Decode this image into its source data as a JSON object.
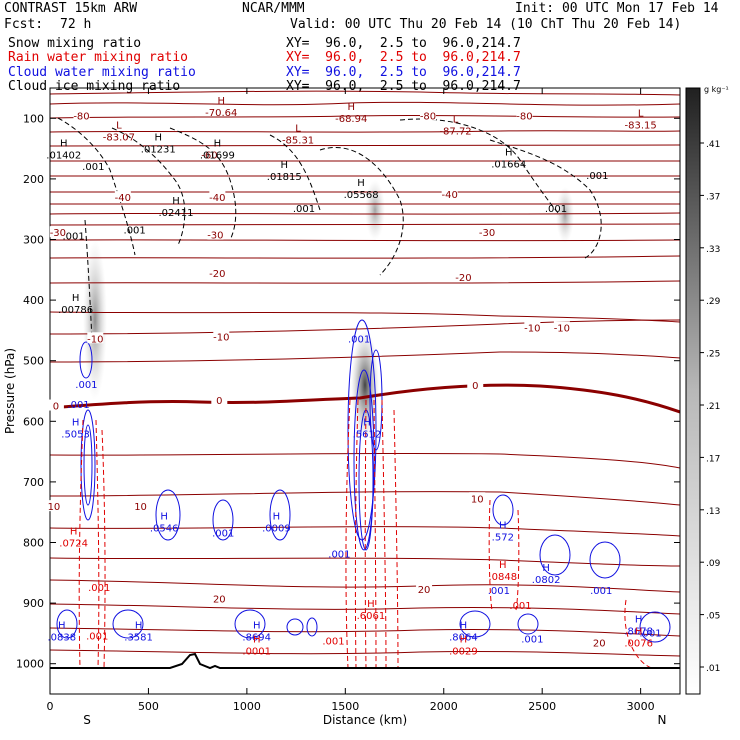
{
  "header": {
    "title": "CONTRAST 15km ARW",
    "org": "NCAR/MMM",
    "init": "Init: 00 UTC Mon 17 Feb 14",
    "fcst_label": "Fcst:",
    "fcst_value": "72 h",
    "valid": "Valid: 00 UTC Thu 20 Feb 14 (10 ChT Thu 20 Feb 14)",
    "fields": [
      {
        "name": "Snow mixing ratio",
        "color": "#000000"
      },
      {
        "name": "Rain water mixing ratio",
        "color": "#e00000"
      },
      {
        "name": "Cloud water mixing ratio",
        "color": "#1010e0"
      },
      {
        "name": "Cloud ice mixing ratio",
        "color": "#000000"
      }
    ],
    "xy_text": "XY=  96.0,  2.5 to  96.0,214.7"
  },
  "colorbar": {
    "unit": "g kg⁻¹",
    "ticks": [
      ".41",
      ".37",
      ".33",
      ".29",
      ".25",
      ".21",
      ".17",
      ".13",
      ".09",
      ".05",
      ".01"
    ]
  },
  "chart_data": {
    "type": "contour",
    "title": "CONTRAST 15km ARW cross section",
    "xlabel": "Distance (km)",
    "ylabel": "Pressure (hPa)",
    "xlim": [
      0,
      3200
    ],
    "ylim": [
      1050,
      50
    ],
    "x_ticks": [
      "0",
      "500",
      "1000",
      "1500",
      "2000",
      "2500",
      "3000"
    ],
    "y_ticks": [
      "100",
      "200",
      "300",
      "400",
      "500",
      "600",
      "700",
      "800",
      "900",
      "1000"
    ],
    "end_labels": [
      "S",
      "N"
    ],
    "temperature_labels": [
      {
        "t": "-80",
        "x": 160,
        "p": 95
      },
      {
        "t": "-80",
        "x": 1920,
        "p": 95
      },
      {
        "t": "-80",
        "x": 2410,
        "p": 95
      },
      {
        "t": "-60",
        "x": 810,
        "p": 160
      },
      {
        "t": "-40",
        "x": 370,
        "p": 230
      },
      {
        "t": "-40",
        "x": 850,
        "p": 230
      },
      {
        "t": "-40",
        "x": 2030,
        "p": 225
      },
      {
        "t": "-30",
        "x": 40,
        "p": 288
      },
      {
        "t": "-30",
        "x": 840,
        "p": 292
      },
      {
        "t": "-30",
        "x": 2220,
        "p": 288
      },
      {
        "t": "-20",
        "x": 850,
        "p": 355
      },
      {
        "t": "-20",
        "x": 2100,
        "p": 362
      },
      {
        "t": "-10",
        "x": 230,
        "p": 463
      },
      {
        "t": "-10",
        "x": 870,
        "p": 460
      },
      {
        "t": "-10",
        "x": 2450,
        "p": 445
      },
      {
        "t": "-10",
        "x": 2600,
        "p": 445
      },
      {
        "t": "0",
        "x": 30,
        "p": 574
      },
      {
        "t": "0",
        "x": 860,
        "p": 565
      },
      {
        "t": "0",
        "x": 2160,
        "p": 540
      },
      {
        "t": "10",
        "x": 20,
        "p": 740
      },
      {
        "t": "10",
        "x": 460,
        "p": 740
      },
      {
        "t": "10",
        "x": 2170,
        "p": 727
      },
      {
        "t": "20",
        "x": 860,
        "p": 892
      },
      {
        "t": "20",
        "x": 1900,
        "p": 877
      },
      {
        "t": "20",
        "x": 2790,
        "p": 965
      }
    ],
    "extrema_labels": [
      {
        "mark": "H",
        "value": "-70.64",
        "x": 870,
        "p": 80,
        "field": "temperature"
      },
      {
        "mark": "H",
        "value": "-68.94",
        "x": 1530,
        "p": 90,
        "field": "temperature"
      },
      {
        "mark": "L",
        "value": "-83.07",
        "x": 350,
        "p": 120,
        "field": "temperature"
      },
      {
        "mark": "L",
        "value": "-85.31",
        "x": 1260,
        "p": 125,
        "field": "temperature"
      },
      {
        "mark": "L",
        "value": "-87.72",
        "x": 2060,
        "p": 110,
        "field": "temperature"
      },
      {
        "mark": "L",
        "value": "-83.15",
        "x": 3000,
        "p": 100,
        "field": "temperature"
      },
      {
        "mark": "H",
        "value": ".01402",
        "x": 70,
        "p": 150,
        "field": "cloud_ice"
      },
      {
        "mark": "H",
        "value": ".01231",
        "x": 550,
        "p": 140,
        "field": "cloud_ice"
      },
      {
        "mark": "H",
        "value": ".01699",
        "x": 850,
        "p": 150,
        "field": "cloud_ice"
      },
      {
        "mark": "H",
        "value": ".01815",
        "x": 1190,
        "p": 185,
        "field": "cloud_ice"
      },
      {
        "mark": "H",
        "value": ".05568",
        "x": 1580,
        "p": 215,
        "field": "cloud_ice"
      },
      {
        "mark": "H",
        "value": ".01664",
        "x": 2330,
        "p": 165,
        "field": "cloud_ice"
      },
      {
        "mark": "H",
        "value": ".02411",
        "x": 640,
        "p": 245,
        "field": "cloud_ice"
      },
      {
        "mark": "H",
        "value": ".00786",
        "x": 130,
        "p": 405,
        "field": "snow"
      },
      {
        "mark": "H",
        "value": ".5053",
        "x": 130,
        "p": 610,
        "field": "cloud_water"
      },
      {
        "mark": "H",
        "value": ".5612",
        "x": 1610,
        "p": 610,
        "field": "cloud_water"
      },
      {
        "mark": "H",
        "value": ".0546",
        "x": 580,
        "p": 765,
        "field": "cloud_water"
      },
      {
        "mark": "H",
        "value": ".0009",
        "x": 1150,
        "p": 765,
        "field": "cloud_water"
      },
      {
        "mark": "H",
        "value": ".572",
        "x": 2300,
        "p": 780,
        "field": "cloud_water"
      },
      {
        "mark": "H",
        "value": ".0802",
        "x": 2520,
        "p": 850,
        "field": "cloud_water"
      },
      {
        "mark": "H",
        "value": ".0838",
        "x": 60,
        "p": 945,
        "field": "cloud_water"
      },
      {
        "mark": "H",
        "value": ".3581",
        "x": 450,
        "p": 945,
        "field": "cloud_water"
      },
      {
        "mark": "H",
        "value": ".8694",
        "x": 1050,
        "p": 945,
        "field": "cloud_water"
      },
      {
        "mark": "H",
        "value": ".8064",
        "x": 2100,
        "p": 945,
        "field": "cloud_water"
      },
      {
        "mark": "H",
        "value": ".8678",
        "x": 2990,
        "p": 935,
        "field": "cloud_water"
      },
      {
        "mark": "H",
        "value": ".0724",
        "x": 120,
        "p": 790,
        "field": "rain"
      },
      {
        "mark": "H",
        "value": ".0848",
        "x": 2300,
        "p": 845,
        "field": "rain"
      },
      {
        "mark": "H",
        "value": ".6061",
        "x": 1630,
        "p": 910,
        "field": "rain"
      },
      {
        "mark": "H",
        "value": ".0001",
        "x": 1050,
        "p": 968,
        "field": "rain"
      },
      {
        "mark": "H",
        "value": ".0029",
        "x": 2100,
        "p": 968,
        "field": "rain"
      },
      {
        "mark": "H",
        "value": ".0076",
        "x": 2990,
        "p": 955,
        "field": "rain"
      }
    ],
    "small_labels": [
      {
        "value": ".001",
        "x": 120,
        "p": 300,
        "color": "#000000"
      },
      {
        "value": ".001",
        "x": 220,
        "p": 185,
        "color": "#000000"
      },
      {
        "value": ".001",
        "x": 430,
        "p": 290,
        "color": "#000000"
      },
      {
        "value": ".001",
        "x": 1290,
        "p": 255,
        "color": "#000000"
      },
      {
        "value": ".001",
        "x": 2570,
        "p": 255,
        "color": "#000000"
      },
      {
        "value": ".001",
        "x": 2780,
        "p": 200,
        "color": "#000000"
      },
      {
        "value": ".001",
        "x": 1570,
        "p": 470,
        "color": "#1010e0"
      },
      {
        "value": ".001",
        "x": 185,
        "p": 545,
        "color": "#1010e0"
      },
      {
        "value": ".001",
        "x": 145,
        "p": 578,
        "color": "#1010e0"
      },
      {
        "value": ".001",
        "x": 880,
        "p": 790,
        "color": "#1010e0"
      },
      {
        "value": ".001",
        "x": 1470,
        "p": 825,
        "color": "#1010e0"
      },
      {
        "value": ".001",
        "x": 2280,
        "p": 885,
        "color": "#1010e0"
      },
      {
        "value": ".001",
        "x": 2800,
        "p": 885,
        "color": "#1010e0"
      },
      {
        "value": ".001",
        "x": 2450,
        "p": 965,
        "color": "#1010e0"
      },
      {
        "value": ".001",
        "x": 3050,
        "p": 955,
        "color": "#1010e0"
      },
      {
        "value": ".001",
        "x": 250,
        "p": 880,
        "color": "#e00000"
      },
      {
        "value": ".001",
        "x": 240,
        "p": 960,
        "color": "#e00000"
      },
      {
        "value": ".001",
        "x": 2390,
        "p": 910,
        "color": "#e00000"
      },
      {
        "value": ".001",
        "x": 1440,
        "p": 968,
        "color": "#e00000"
      }
    ]
  }
}
